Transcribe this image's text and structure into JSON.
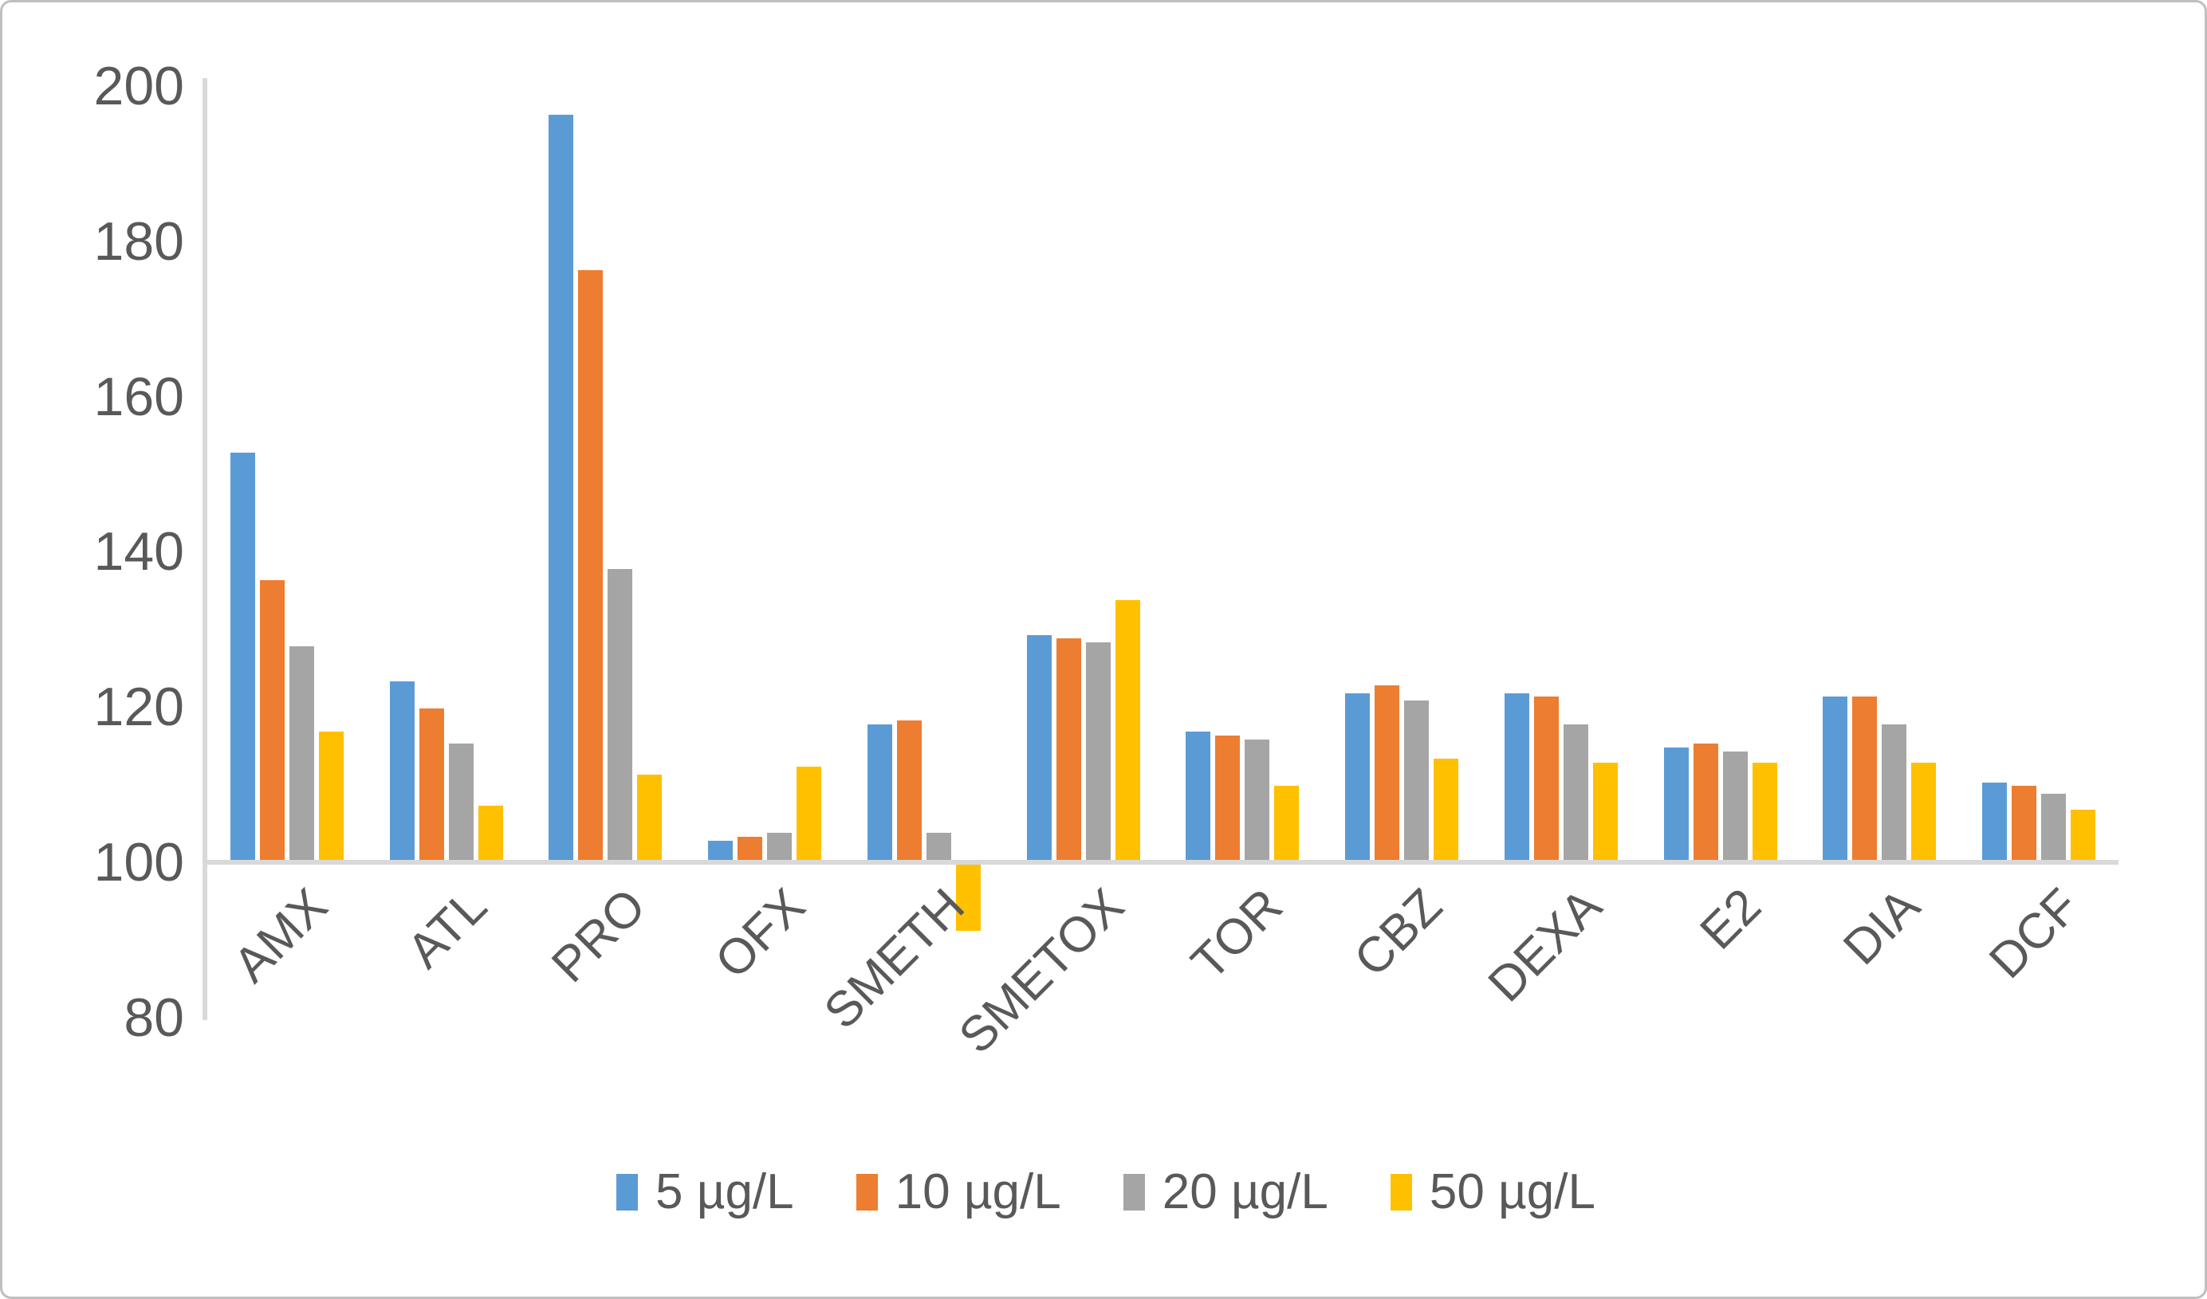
{
  "chart_data": {
    "type": "bar",
    "title": "",
    "xlabel": "",
    "ylabel": "",
    "categories": [
      "AMX",
      "ATL",
      "PRO",
      "OFX",
      "SMETH",
      "SMETOX",
      "TOR",
      "CBZ",
      "DEXA",
      "E2",
      "DIA",
      "DCF"
    ],
    "series": [
      {
        "name": "5 µg/L",
        "color": "#5B9BD5",
        "values": [
          152.5,
          123,
          196,
          102.5,
          117.5,
          129,
          116.5,
          121.5,
          121.5,
          114.5,
          121,
          110
        ]
      },
      {
        "name": "10 µg/L",
        "color": "#ED7D31",
        "values": [
          136,
          119.5,
          176,
          103,
          118,
          128.5,
          116,
          122.5,
          121,
          115,
          121,
          109.5
        ]
      },
      {
        "name": "20 µg/L",
        "color": "#A5A5A5",
        "values": [
          127.5,
          115,
          137.5,
          103.5,
          103.5,
          128,
          115.5,
          120.5,
          117.5,
          114,
          117.5,
          108.5
        ]
      },
      {
        "name": "50 µg/L",
        "color": "#FFC000",
        "values": [
          116.5,
          107,
          111,
          112,
          91.5,
          133.5,
          109.5,
          113,
          112.5,
          112.5,
          112.5,
          106.5
        ]
      }
    ],
    "baseline": 100,
    "ylim": [
      80,
      200
    ],
    "yticks": [
      200,
      180,
      160,
      140,
      120,
      100,
      80
    ],
    "grid": false,
    "legend_position": "bottom",
    "axis_color": "#D9D9D9",
    "text_color": "#595959"
  }
}
